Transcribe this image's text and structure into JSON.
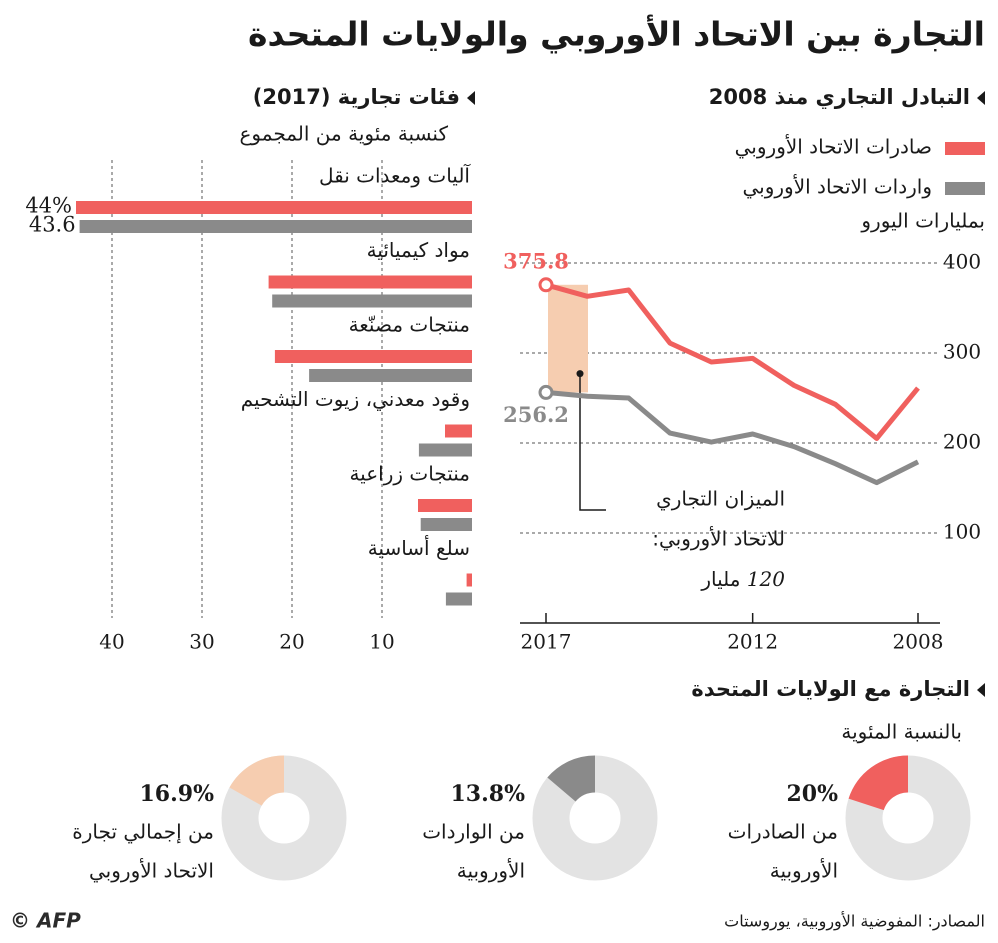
{
  "title": "التجارة بين الاتحاد الأوروبي والولايات المتحدة",
  "chart_data": [
    {
      "type": "line",
      "title": "التبادل التجاري منذ 2008",
      "ylabel": "بمليارات اليورو",
      "x": [
        2008,
        2009,
        2010,
        2011,
        2012,
        2013,
        2014,
        2015,
        2016,
        2017
      ],
      "series": [
        {
          "name": "صادرات الاتحاد الأوروبي",
          "color": "#f0605e",
          "values": [
            261,
            205,
            243,
            264,
            294,
            290,
            311,
            370,
            363,
            375.8
          ],
          "value_labels": [
            null,
            null,
            null,
            null,
            null,
            null,
            null,
            null,
            null,
            "375.8"
          ]
        },
        {
          "name": "واردات الاتحاد الأوروبي",
          "color": "#8a8a8a",
          "values": [
            179,
            156,
            177,
            196,
            210,
            201,
            211,
            250,
            252,
            256.2
          ],
          "value_labels": [
            null,
            null,
            null,
            null,
            null,
            null,
            null,
            null,
            null,
            "256.2"
          ]
        }
      ],
      "xlim": [
        2017,
        2008
      ],
      "xticks": [
        2017,
        2012,
        2008
      ],
      "ylim": [
        0,
        410
      ],
      "yticks": [
        100,
        200,
        300,
        400
      ],
      "grid": true,
      "annotation": {
        "lines": [
          "الميزان التجاري",
          "للاتحاد الأوروبي:"
        ],
        "value": 120,
        "unit": "مليار"
      }
    },
    {
      "type": "barh",
      "title": "فئات تجارية (2017)",
      "subtitle": "كنسبة مئوية من المجموع",
      "categories": [
        "آليات ومعدات نقل",
        "مواد كيميائية",
        "منتجات مصنّعة",
        "وقود معدني، زيوت التشحيم",
        "منتجات زراعية",
        "سلع أساسية"
      ],
      "series": [
        {
          "color": "#f0605e",
          "values": [
            44,
            22.6,
            21.9,
            3,
            6,
            0.6
          ],
          "value_labels": [
            "44%",
            null,
            null,
            null,
            null,
            null
          ]
        },
        {
          "color": "#8a8a8a",
          "values": [
            43.6,
            22.2,
            18.1,
            5.9,
            5.7,
            2.9
          ],
          "value_labels": [
            "43.6",
            null,
            null,
            null,
            null,
            null
          ]
        }
      ],
      "xlim": [
        0,
        45
      ],
      "xticks": [
        10,
        20,
        30,
        40
      ],
      "grid": true
    },
    {
      "type": "donut",
      "title": "التجارة مع الولايات المتحدة",
      "subtitle": "بالنسبة المئوية",
      "values": [
        20,
        13.8,
        16.9
      ],
      "value_labels": [
        "20%",
        "13.8%",
        "16.9%"
      ],
      "labels": [
        [
          "من الصادرات",
          "الأوروبية"
        ],
        [
          "من الواردات",
          "الأوروبية"
        ],
        [
          "من إجمالي تجارة",
          "الاتحاد الأوروبي"
        ]
      ],
      "colors": [
        "#f0605e",
        "#8a8a8a",
        "#f6cdb0"
      ],
      "rest_color": "#e3e3e3"
    }
  ],
  "footer": {
    "source": "المصادر: المفوضية الأوروبية، يوروستات",
    "credit": "© AFP"
  }
}
